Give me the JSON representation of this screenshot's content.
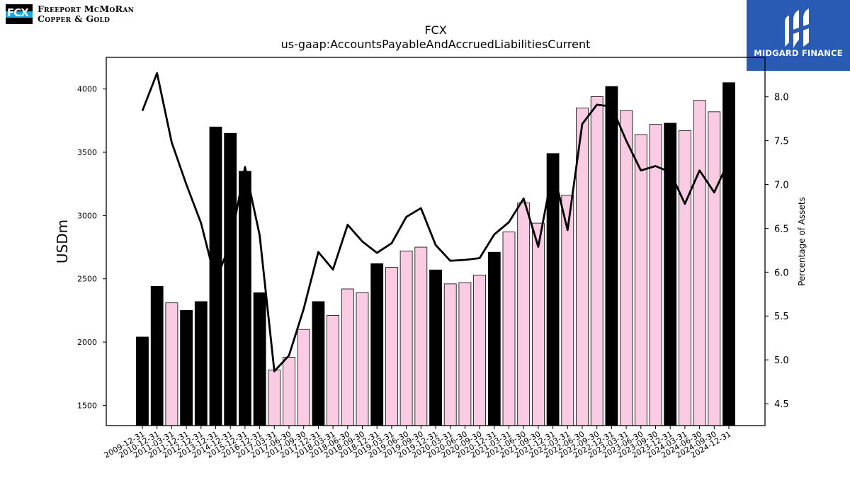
{
  "branding": {
    "left_logo_mark": "FCX",
    "left_logo_line1": "Freeport McMoRan",
    "left_logo_line2": "Copper & Gold",
    "right_logo_name": "MIDGARD FINANCE"
  },
  "chart_data": {
    "type": "bar",
    "title": "FCX",
    "subtitle": "us-gaap:AccountsPayableAndAccruedLiabilitiesCurrent",
    "ylabel": "USDm",
    "y2label": "Percentage of Assets",
    "ylim": [
      1340,
      4250
    ],
    "y2lim": [
      4.25,
      8.45
    ],
    "yticks": [
      1500,
      2000,
      2500,
      3000,
      3500,
      4000
    ],
    "y2ticks": [
      4.5,
      5.0,
      5.5,
      6.0,
      6.5,
      7.0,
      7.5,
      8.0
    ],
    "colors": {
      "annual": "#000000",
      "quarterly": "#f9cce4",
      "line": "#000000"
    },
    "categories": [
      "2009-12-31",
      "2010-12-31",
      "2011-03-31",
      "2011-12-31",
      "2012-12-31",
      "2013-12-31",
      "2014-12-31",
      "2015-12-31",
      "2016-12-31",
      "2017-03-31",
      "2017-06-30",
      "2017-09-30",
      "2017-12-31",
      "2018-03-31",
      "2018-06-30",
      "2018-09-30",
      "2018-12-31",
      "2019-03-31",
      "2019-06-30",
      "2019-09-30",
      "2019-12-31",
      "2020-03-31",
      "2020-06-30",
      "2020-09-30",
      "2020-12-31",
      "2021-03-31",
      "2021-06-30",
      "2021-09-30",
      "2021-12-31",
      "2022-03-31",
      "2022-06-30",
      "2022-09-30",
      "2022-12-31",
      "2023-03-31",
      "2023-06-30",
      "2023-09-30",
      "2023-12-31",
      "2024-03-31",
      "2024-06-30",
      "2024-09-30",
      "2024-12-31"
    ],
    "series": [
      {
        "kind": "bar",
        "values": [
          2040,
          2440,
          2310,
          2250,
          2320,
          3700,
          3650,
          3350,
          2390,
          1780,
          1880,
          2100,
          2320,
          2210,
          2420,
          2390,
          2620,
          2590,
          2720,
          2750,
          2570,
          2460,
          2470,
          2530,
          2710,
          2870,
          3100,
          2940,
          3490,
          3160,
          3850,
          3940,
          4020,
          3830,
          3640,
          3720,
          3730,
          3670,
          3910,
          3820,
          4050
        ],
        "period": [
          "annual",
          "annual",
          "quarterly",
          "annual",
          "annual",
          "annual",
          "annual",
          "annual",
          "annual",
          "quarterly",
          "quarterly",
          "quarterly",
          "annual",
          "quarterly",
          "quarterly",
          "quarterly",
          "annual",
          "quarterly",
          "quarterly",
          "quarterly",
          "annual",
          "quarterly",
          "quarterly",
          "quarterly",
          "annual",
          "quarterly",
          "quarterly",
          "quarterly",
          "annual",
          "quarterly",
          "quarterly",
          "quarterly",
          "annual",
          "quarterly",
          "quarterly",
          "quarterly",
          "annual",
          "quarterly",
          "quarterly",
          "quarterly",
          "annual"
        ]
      },
      {
        "kind": "line",
        "axis": "right",
        "values": [
          7.84,
          8.27,
          7.48,
          7.0,
          6.56,
          5.9,
          6.33,
          7.2,
          6.42,
          4.87,
          5.05,
          5.58,
          6.23,
          6.03,
          6.54,
          6.35,
          6.22,
          6.33,
          6.63,
          6.73,
          6.31,
          6.13,
          6.14,
          6.16,
          6.43,
          6.57,
          6.84,
          6.29,
          7.17,
          6.48,
          7.69,
          7.91,
          7.89,
          7.5,
          7.16,
          7.21,
          7.14,
          6.78,
          7.16,
          6.91,
          7.27
        ]
      }
    ]
  }
}
